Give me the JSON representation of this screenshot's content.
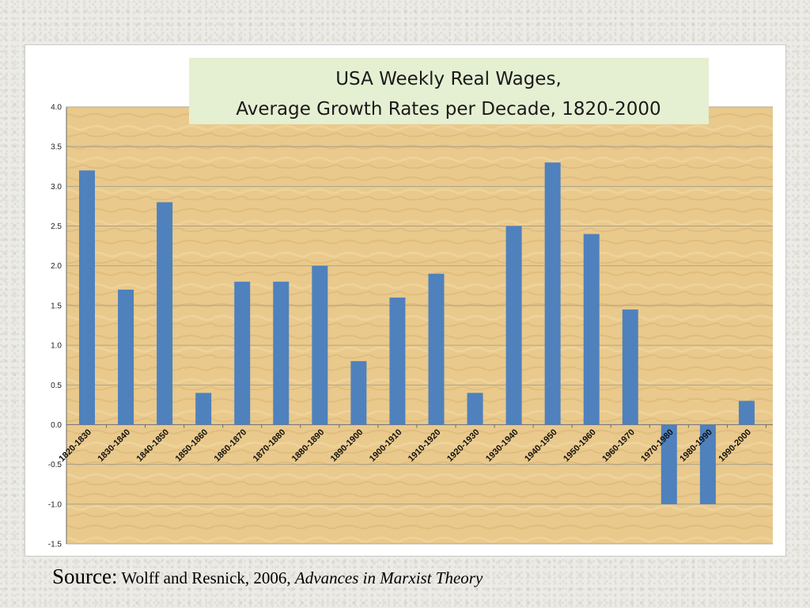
{
  "chart_data": {
    "type": "bar",
    "title": [
      "USA  Weekly Real  Wages,",
      "Average Growth Rates per Decade, 1820-2000"
    ],
    "xlabel": "",
    "ylabel": "",
    "ylim": [
      -1.5,
      4.0
    ],
    "yticks": [
      "4.0",
      "3.5",
      "3.0",
      "2.5",
      "2.0",
      "1.5",
      "1.0",
      "0.5",
      "0.0",
      "-0.5",
      "-1.0",
      "-1.5"
    ],
    "categories": [
      "1820-1830",
      "1830-1840",
      "1840-1850",
      "1850-1860",
      "1860-1870",
      "1870-1880",
      "1880-1890",
      "1890-1900",
      "1900-1910",
      "1910-1920",
      "1920-1930",
      "1930-1940",
      "1940-1950",
      "1950-1960",
      "1960-1970",
      "1970-1980",
      "1980-1990",
      "1990-2000"
    ],
    "values": [
      3.2,
      1.7,
      2.8,
      0.4,
      1.8,
      1.8,
      2.0,
      0.8,
      1.6,
      1.9,
      0.4,
      2.5,
      3.3,
      2.4,
      1.45,
      -1.0,
      -1.0,
      0.3
    ],
    "grid": true,
    "legend": "none",
    "bar_color": "#4f81bd",
    "plot_background": "#e8c98e",
    "title_background": "#e5efd2"
  },
  "source": {
    "label": "Source:",
    "text": " Wolff and Resnick, 2006, ",
    "book": "Advances in Marxist Theory"
  }
}
